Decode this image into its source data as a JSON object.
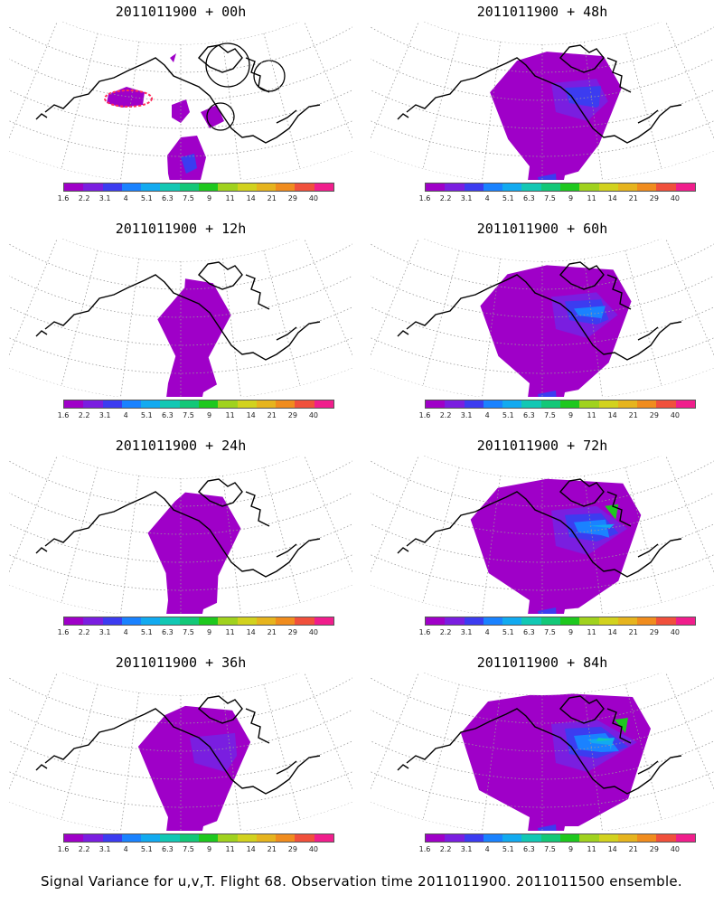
{
  "panels": [
    {
      "title": "2011011900 + 00h",
      "stage": 0
    },
    {
      "title": "2011011900 + 48h",
      "stage": 4
    },
    {
      "title": "2011011900 + 12h",
      "stage": 1
    },
    {
      "title": "2011011900 + 60h",
      "stage": 5
    },
    {
      "title": "2011011900 + 24h",
      "stage": 2
    },
    {
      "title": "2011011900 + 72h",
      "stage": 6
    },
    {
      "title": "2011011900 + 36h",
      "stage": 3
    },
    {
      "title": "2011011900 + 84h",
      "stage": 7
    }
  ],
  "colorbar": {
    "labels": [
      "1.6",
      "2.2",
      "3.1",
      "4",
      "5.1",
      "6.3",
      "7.5",
      "9",
      "11",
      "14",
      "21",
      "29",
      "40"
    ],
    "colors": [
      "#9f00c8",
      "#7a1ee0",
      "#3c3cf0",
      "#1a82ff",
      "#12aaf0",
      "#12c8b4",
      "#13c878",
      "#1ec81e",
      "#a0d21e",
      "#d2d21e",
      "#e6b41e",
      "#f08c1e",
      "#f0503c",
      "#f01e8c"
    ]
  },
  "caption": "Signal Variance for u,v,T. Flight 68. Observation time 2011011900. 2011011500 ensemble."
}
